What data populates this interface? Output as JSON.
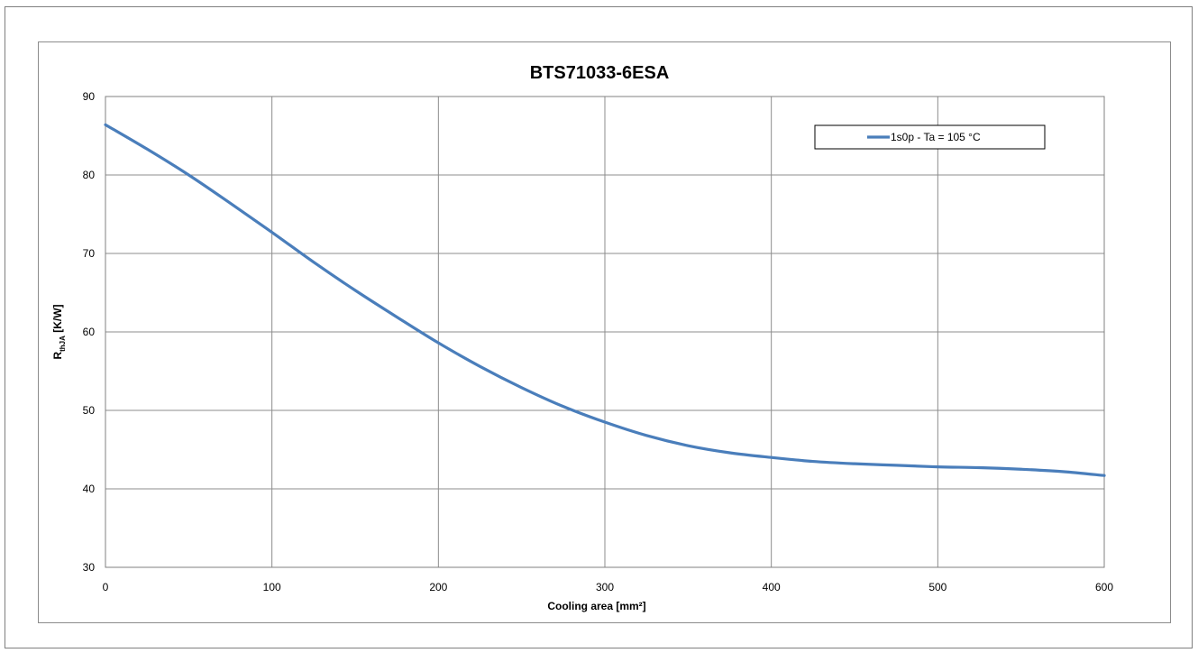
{
  "chart_data": {
    "type": "line",
    "title": "BTS71033-6ESA",
    "xlabel": "Cooling area [mm²]",
    "ylabel": {
      "main": "R",
      "sub": "thJA",
      "unit": " [K/W]"
    },
    "xlim": [
      0,
      600
    ],
    "ylim": [
      30,
      90
    ],
    "xticks": [
      0,
      100,
      200,
      300,
      400,
      500,
      600
    ],
    "yticks": [
      30,
      40,
      50,
      60,
      70,
      80,
      90
    ],
    "grid": true,
    "legend_position": "top-right",
    "series": [
      {
        "name": "1s0p - Ta = 105 °C",
        "color": "#4a7ebb",
        "x": [
          0,
          25,
          50,
          75,
          100,
          125,
          150,
          175,
          200,
          225,
          250,
          275,
          300,
          325,
          350,
          375,
          400,
          425,
          450,
          475,
          500,
          525,
          550,
          575,
          600
        ],
        "y": [
          86.4,
          83.3,
          80.0,
          76.4,
          72.7,
          68.9,
          65.3,
          61.9,
          58.6,
          55.6,
          52.9,
          50.5,
          48.5,
          46.8,
          45.5,
          44.6,
          44.0,
          43.5,
          43.2,
          43.0,
          42.8,
          42.7,
          42.5,
          42.2,
          41.7
        ]
      }
    ]
  }
}
